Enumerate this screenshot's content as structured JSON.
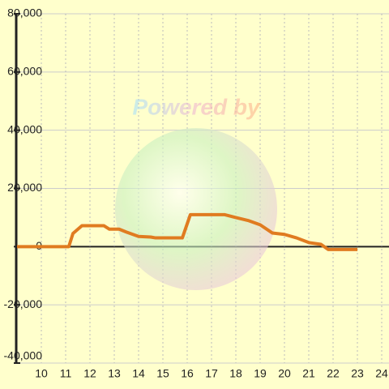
{
  "chart_data": {
    "type": "line",
    "watermark": "Powered by",
    "x": [
      9,
      11.13,
      11.3,
      11.67,
      12.57,
      12.8,
      13.2,
      13.5,
      14,
      14.5,
      14.7,
      15.8,
      16.13,
      17.53,
      18,
      18.5,
      19,
      19.5,
      20,
      20.5,
      21,
      21.5,
      21.8,
      23
    ],
    "series": [
      {
        "color": "#e07b20",
        "values": [
          0,
          0,
          4500,
          7200,
          7200,
          6000,
          6000,
          5000,
          3500,
          3300,
          3000,
          3000,
          11000,
          11000,
          10000,
          9000,
          7500,
          4700,
          4200,
          3000,
          1400,
          800,
          -1000,
          -1000
        ]
      }
    ],
    "xlim": [
      9,
      24.3
    ],
    "xticks": [
      10,
      11,
      12,
      13,
      14,
      15,
      16,
      17,
      18,
      19,
      20,
      21,
      22,
      23,
      24
    ],
    "ylim": [
      -40000,
      80000
    ],
    "yticks": [
      {
        "value": -40000,
        "label": "-40,000"
      },
      {
        "value": -20000,
        "label": "-20,000"
      },
      0,
      {
        "value": 20000,
        "label": "20,000"
      },
      {
        "value": 40000,
        "label": "40,000"
      },
      {
        "value": 60000,
        "label": "60,000"
      },
      {
        "value": 80000,
        "label": "80,000"
      }
    ],
    "grid": true
  }
}
